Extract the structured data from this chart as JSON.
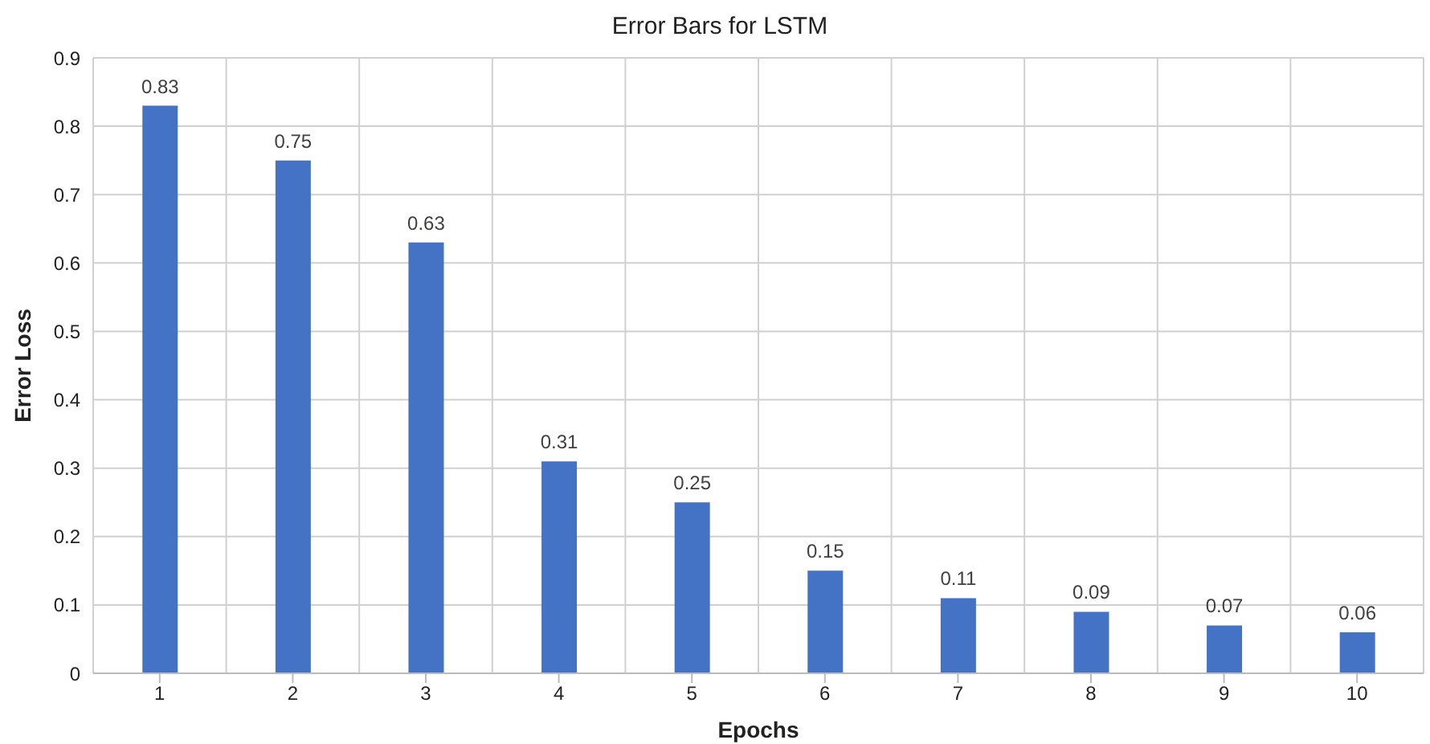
{
  "chart_data": {
    "type": "bar",
    "title": "Error Bars for LSTM",
    "xlabel": "Epochs",
    "ylabel": "Error Loss",
    "categories": [
      "1",
      "2",
      "3",
      "4",
      "5",
      "6",
      "7",
      "8",
      "9",
      "10"
    ],
    "values": [
      0.83,
      0.75,
      0.63,
      0.31,
      0.25,
      0.15,
      0.11,
      0.09,
      0.07,
      0.06
    ],
    "color": "#4472c4",
    "ylim": [
      0,
      0.9
    ],
    "yticks": [
      0,
      0.1,
      0.2,
      0.3,
      0.4,
      0.5,
      0.6,
      0.7,
      0.8,
      0.9
    ],
    "grid": true,
    "data_labels": true
  }
}
